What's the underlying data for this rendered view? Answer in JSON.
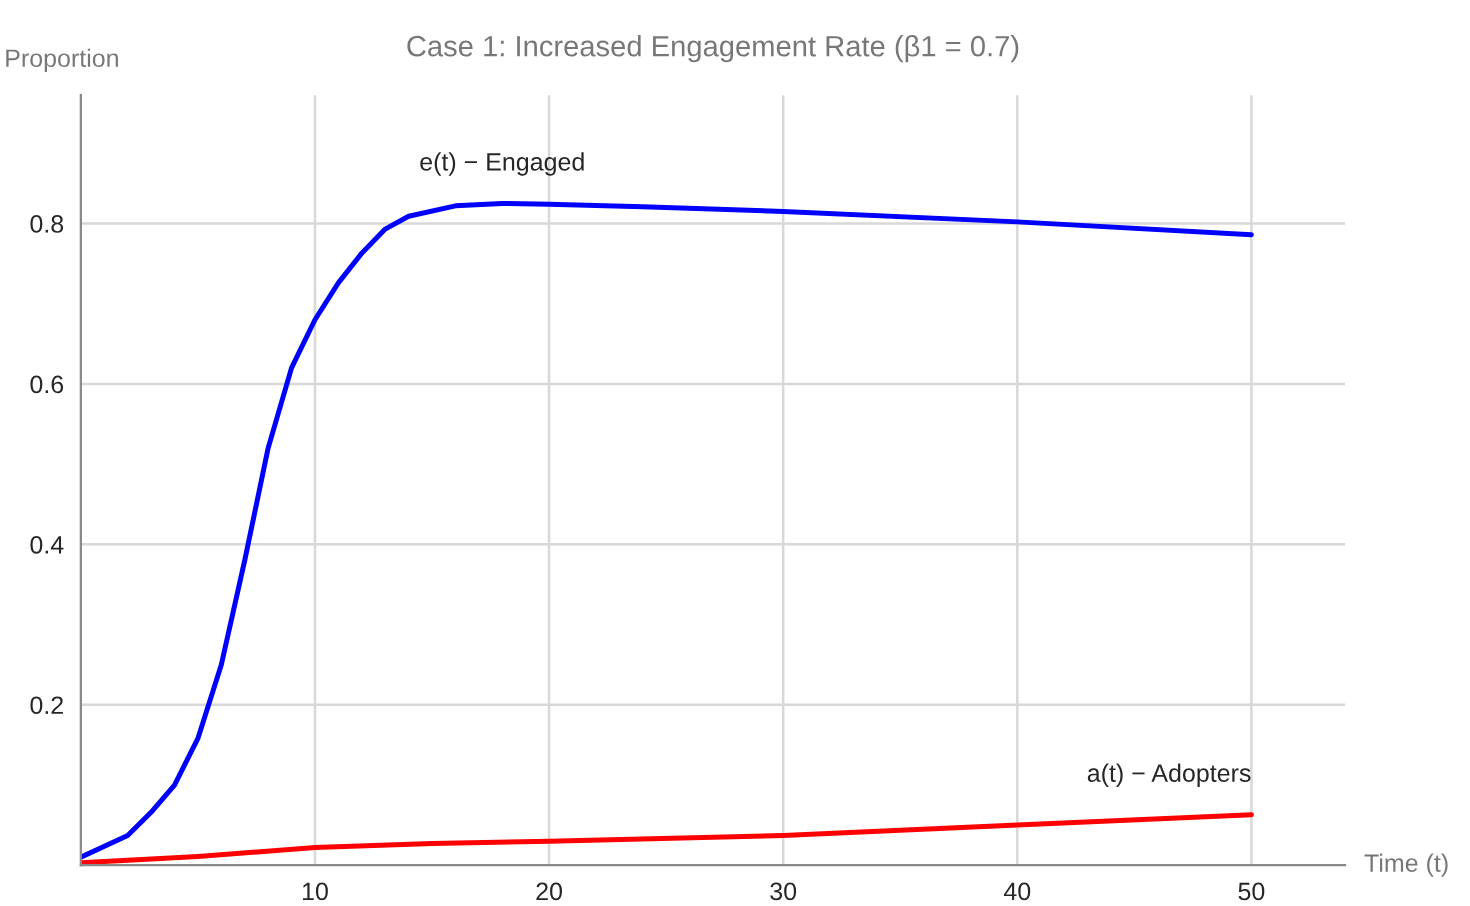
{
  "chart_data": {
    "type": "line",
    "title": "Case 1: Increased Engagement Rate (β1 = 0.7)",
    "xlabel": "Time (t)",
    "ylabel": "Proportion",
    "series": [
      {
        "name": "e(t) − Engaged",
        "color": "#0000ff",
        "x": [
          0,
          2,
          3,
          4,
          5,
          6,
          7,
          8,
          9,
          10,
          11,
          12,
          13,
          14,
          16,
          18,
          20,
          24,
          30,
          40,
          50
        ],
        "values": [
          0.01,
          0.037,
          0.066,
          0.1,
          0.158,
          0.25,
          0.38,
          0.52,
          0.62,
          0.68,
          0.726,
          0.763,
          0.793,
          0.809,
          0.822,
          0.825,
          0.824,
          0.821,
          0.815,
          0.802,
          0.786
        ]
      },
      {
        "name": "a(t) − Adopters",
        "color": "#ff0000",
        "x": [
          0,
          5,
          10,
          15,
          20,
          30,
          40,
          50
        ],
        "values": [
          0.003,
          0.011,
          0.022,
          0.027,
          0.03,
          0.037,
          0.05,
          0.063
        ]
      }
    ],
    "xlim": [
      0,
      54
    ],
    "ylim": [
      0,
      0.96
    ],
    "xticks": [
      10,
      20,
      30,
      40,
      50
    ],
    "yticks": [
      0.2,
      0.4,
      0.6,
      0.8
    ],
    "grid": true,
    "marker": "none",
    "line_style": "solid"
  }
}
